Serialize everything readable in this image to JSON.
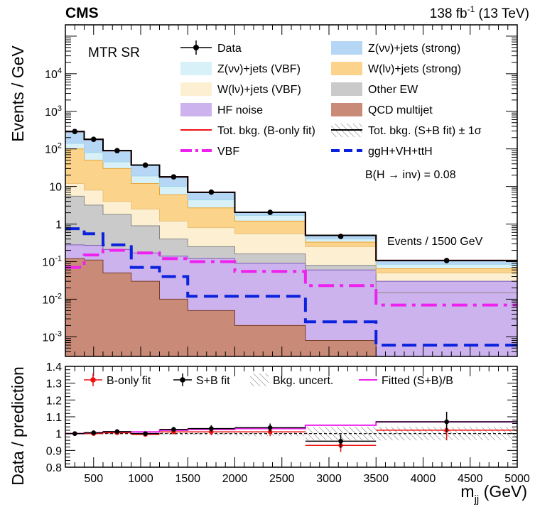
{
  "header": {
    "experiment": "CMS",
    "lumi_value": "138 fb",
    "lumi_exp": "-1",
    "lumi_energy": " (13 TeV)"
  },
  "chart_data": {
    "type": "area",
    "region_label": "MTR SR",
    "binning_note": "Events / 1500 GeV",
    "signal_label": "B(H → inv) = 0.08",
    "ylabel_top": "Events / GeV",
    "ylabel_bottom": "Data / prediction",
    "xlabel": "m",
    "xlabel_sub": "jj",
    "xlabel_unit": " (GeV)",
    "bin_edges": [
      200,
      400,
      600,
      900,
      1200,
      1500,
      2000,
      2750,
      3500,
      5000
    ],
    "x_ticks": [
      500,
      1000,
      1500,
      2000,
      2500,
      3000,
      3500,
      4000,
      4500,
      5000
    ],
    "xlim": [
      200,
      5000
    ],
    "top_ylim": [
      0.0003,
      200000
    ],
    "top_yscale": "log",
    "top_y_ticks": [
      {
        "value": 10000,
        "mant": "10",
        "exp": "4"
      },
      {
        "value": 1000,
        "mant": "10",
        "exp": "3"
      },
      {
        "value": 100,
        "mant": "10",
        "exp": "2"
      },
      {
        "value": 10,
        "mant": "10",
        "exp": ""
      },
      {
        "value": 1,
        "mant": "1",
        "exp": ""
      },
      {
        "value": 0.1,
        "mant": "10",
        "exp": "-1"
      },
      {
        "value": 0.01,
        "mant": "10",
        "exp": "-2"
      },
      {
        "value": 0.001,
        "mant": "10",
        "exp": "-3"
      }
    ],
    "stack": [
      {
        "name": "QCD multijet",
        "color": "#c98b78",
        "values": [
          0.12,
          0.11,
          0.05,
          0.03,
          0.01,
          0.005,
          0.002,
          0.0008,
          0.0003
        ]
      },
      {
        "name": "HF noise",
        "color": "#cdb3ee",
        "values": [
          0.28,
          0.27,
          0.21,
          0.17,
          0.14,
          0.12,
          0.09,
          0.06,
          0.03
        ]
      },
      {
        "name": "Other EW",
        "color": "#cacaca",
        "values": [
          5.5,
          3.2,
          1.8,
          0.9,
          0.4,
          0.25,
          0.16,
          0.08,
          0.015
        ]
      },
      {
        "name": "W(lν)+jets (VBF)",
        "color": "#fdf0d2",
        "values": [
          12,
          8,
          4,
          2.5,
          1.2,
          0.8,
          0.55,
          0.25,
          0.05
        ]
      },
      {
        "name": "W(lν)+jets (strong)",
        "color": "#fbd38a",
        "values": [
          100,
          50,
          30,
          12,
          6,
          2.7,
          1.2,
          0.33,
          0.065
        ]
      },
      {
        "name": "Z(νν)+jets (VBF)",
        "color": "#d8f1f9",
        "values": [
          140,
          80,
          45,
          19,
          10,
          4.4,
          1.7,
          0.4,
          0.085
        ]
      },
      {
        "name": "Z(νν)+jets (strong)",
        "color": "#b6d6f5",
        "values": [
          290,
          180,
          90,
          37,
          18,
          7,
          2.05,
          0.5,
          0.107
        ]
      }
    ],
    "total_bkg": [
      290,
      180,
      90,
      37,
      18,
      7,
      2.05,
      0.5,
      0.107
    ],
    "data": {
      "name": "Data",
      "x": [
        300,
        500,
        750,
        1050,
        1350,
        1750,
        2375,
        3125,
        4250
      ],
      "y": [
        290,
        180,
        90,
        37,
        18,
        7.1,
        2.05,
        0.47,
        0.107
      ]
    },
    "signal_vbf": {
      "name": "VBF",
      "color": "#ee22ee",
      "values": [
        0.07,
        0.15,
        0.2,
        0.17,
        0.12,
        0.1,
        0.055,
        0.023,
        0.007
      ]
    },
    "signal_ggh": {
      "name": "ggH+VH+ttH",
      "color": "#0a22dd",
      "values": [
        0.75,
        0.55,
        0.28,
        0.07,
        0.04,
        0.012,
        0.012,
        0.0025,
        0.0006
      ]
    },
    "legend": [
      {
        "key": "data",
        "label": "Data"
      },
      {
        "key": "zvv_strong",
        "label": "Z(νν)+jets (strong)"
      },
      {
        "key": "zvv_vbf",
        "label": "Z(νν)+jets (VBF)"
      },
      {
        "key": "wlv_strong",
        "label": "W(lν)+jets (strong)"
      },
      {
        "key": "wlv_vbf",
        "label": "W(lν)+jets (VBF)"
      },
      {
        "key": "other_ew",
        "label": "Other EW"
      },
      {
        "key": "hf_noise",
        "label": "HF noise"
      },
      {
        "key": "qcd",
        "label": "QCD multijet"
      },
      {
        "key": "bonly_line",
        "label": "Tot. bkg. (B-only fit)"
      },
      {
        "key": "splusb_band",
        "label": "Tot. bkg. (S+B fit) ± 1σ"
      },
      {
        "key": "vbf",
        "label": "VBF"
      },
      {
        "key": "ggh",
        "label": "ggH+VH+ttH"
      }
    ],
    "ratio": {
      "ylim": [
        0.8,
        1.4
      ],
      "y_ticks": [
        0.8,
        0.9,
        1,
        1.1,
        1.2,
        1.3,
        1.4
      ],
      "y_tick_labels": [
        "0.8",
        "0.9",
        "1",
        "1.1",
        "1.2",
        "1.3",
        "1.4"
      ],
      "legend": [
        {
          "key": "bonly",
          "label": "B-only fit",
          "color": "#ee1111"
        },
        {
          "key": "splusb",
          "label": "S+B fit",
          "color": "#000000"
        },
        {
          "key": "unc",
          "label": "Bkg. uncert.",
          "color": "#555555"
        },
        {
          "key": "fitted",
          "label": "Fitted (S+B)/B",
          "color": "#ee22ee"
        }
      ],
      "bonly": {
        "x": [
          300,
          500,
          750,
          1050,
          1350,
          1750,
          2375,
          3125,
          4250
        ],
        "y": [
          1.0,
          1.0,
          1.005,
          0.995,
          1.01,
          1.01,
          1.01,
          0.93,
          1.02
        ],
        "err": [
          0.01,
          0.01,
          0.01,
          0.012,
          0.014,
          0.02,
          0.025,
          0.04,
          0.06
        ]
      },
      "splusb": {
        "x": [
          300,
          500,
          750,
          1050,
          1350,
          1750,
          2375,
          3125,
          4250
        ],
        "y": [
          1.0,
          1.005,
          1.012,
          1.0,
          1.025,
          1.03,
          1.035,
          0.955,
          1.07
        ],
        "err": [
          0.01,
          0.01,
          0.01,
          0.012,
          0.015,
          0.02,
          0.025,
          0.04,
          0.06
        ]
      },
      "fitted": [
        1.0,
        1.005,
        1.01,
        1.01,
        1.02,
        1.025,
        1.03,
        1.05,
        1.07
      ],
      "band": [
        0.005,
        0.005,
        0.005,
        0.005,
        0.01,
        0.01,
        0.015,
        0.04,
        0.04
      ]
    }
  }
}
